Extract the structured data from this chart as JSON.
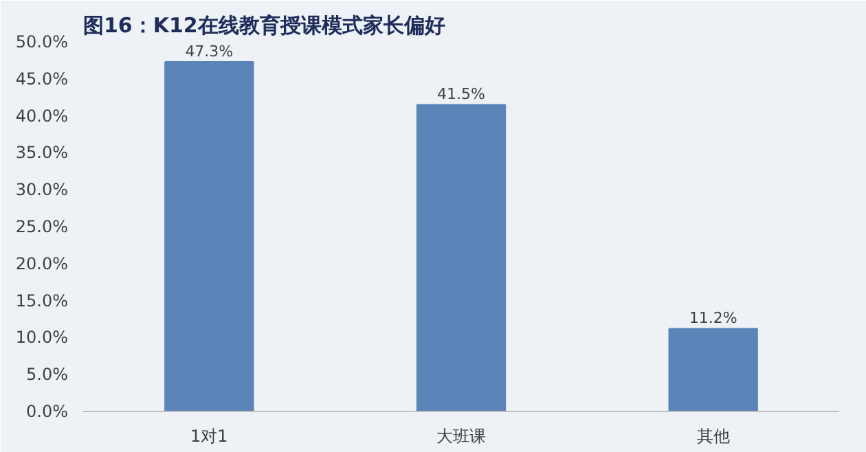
{
  "chart_data": {
    "type": "bar",
    "title": "图16：K12在线教育授课模式家长偏好",
    "categories": [
      "1对1",
      "大班课",
      "其他"
    ],
    "values": [
      47.3,
      41.5,
      11.2
    ],
    "value_labels": [
      "47.3%",
      "41.5%",
      "11.2%"
    ],
    "color": "#5b84b8",
    "ylim": [
      0,
      50
    ],
    "yticks": [
      {
        "value": 0,
        "label": "0.0%"
      },
      {
        "value": 5,
        "label": "5.0%"
      },
      {
        "value": 10,
        "label": "10.0%"
      },
      {
        "value": 15,
        "label": "15.0%"
      },
      {
        "value": 20,
        "label": "20.0%"
      },
      {
        "value": 25,
        "label": "25.0%"
      },
      {
        "value": 30,
        "label": "30.0%"
      },
      {
        "value": 35,
        "label": "35.0%"
      },
      {
        "value": 40,
        "label": "40.0%"
      },
      {
        "value": 45,
        "label": "45.0%"
      },
      {
        "value": 50,
        "label": "50.0%"
      }
    ],
    "grid": false
  }
}
